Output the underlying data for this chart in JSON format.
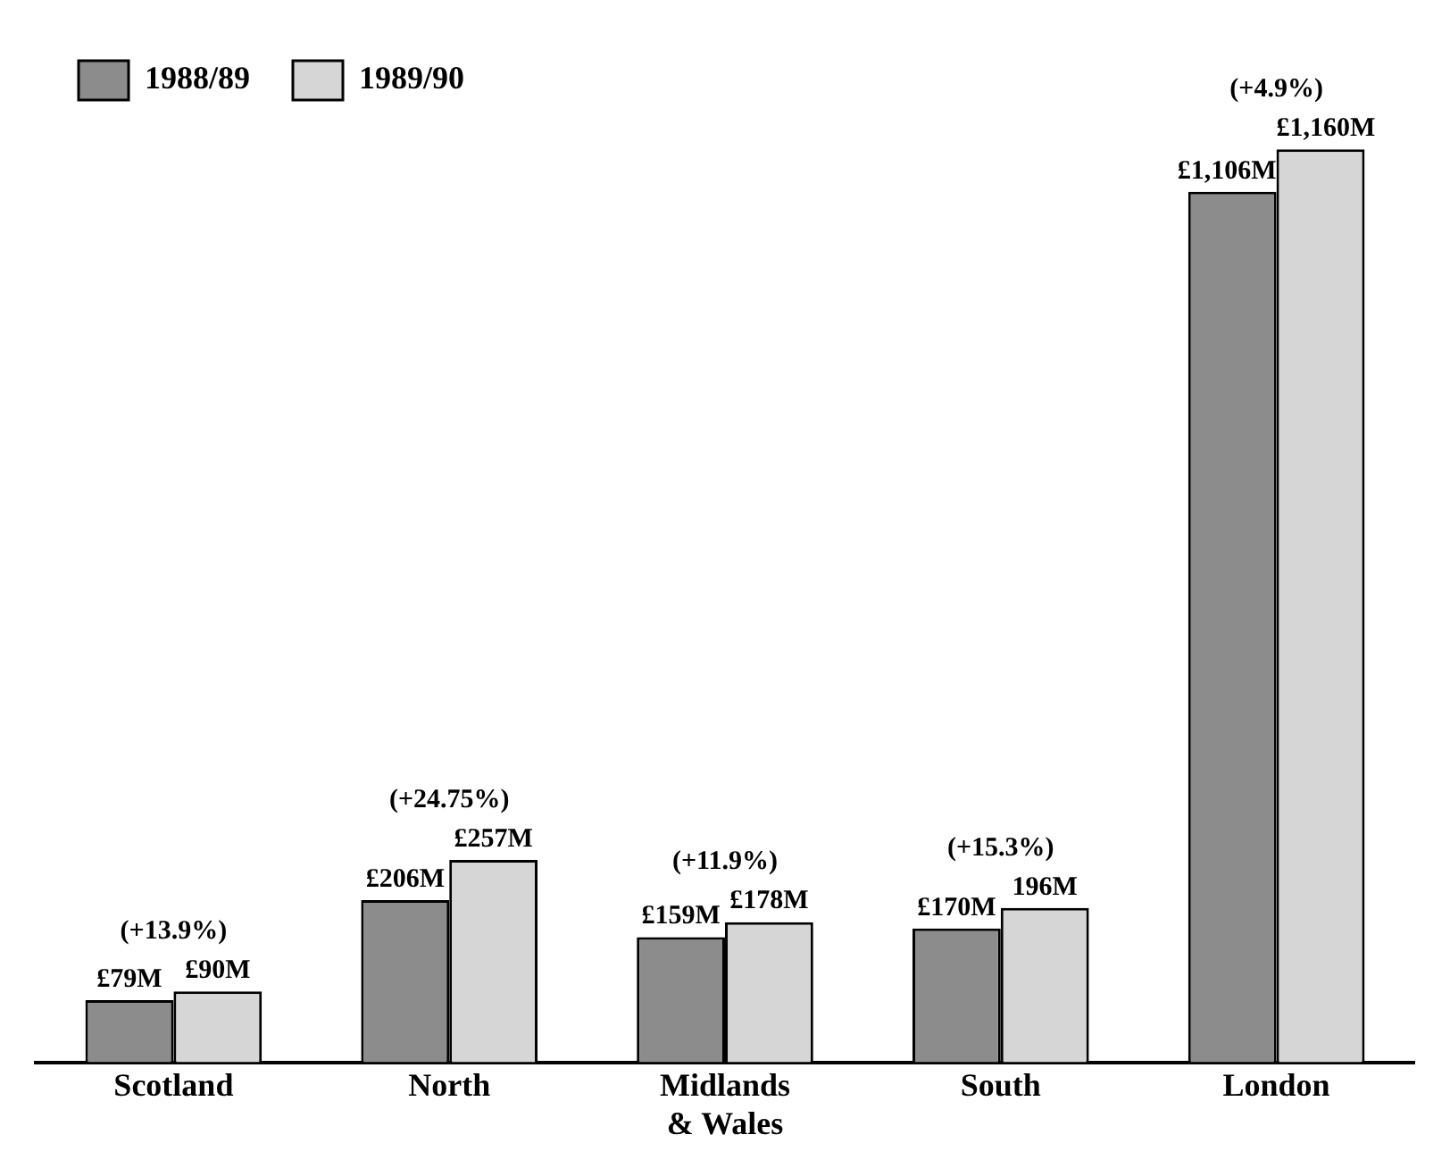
{
  "chart_data": {
    "type": "bar",
    "categories": [
      "Scotland",
      "North",
      "Midlands\n& Wales",
      "South",
      "London"
    ],
    "series": [
      {
        "name": "1988/89",
        "color": "#8c8c8c",
        "values": [
          79,
          206,
          159,
          170,
          1106
        ],
        "value_labels": [
          "£79M",
          "£206M",
          "£159M",
          "£170M",
          "£1,106M"
        ]
      },
      {
        "name": "1989/90",
        "color": "#d6d6d6",
        "values": [
          90,
          257,
          178,
          196,
          1160
        ],
        "value_labels": [
          "£90M",
          "£257M",
          "£178M",
          "196M",
          "£1,160M"
        ]
      }
    ],
    "annotations": [
      {
        "text": "(+13.9%)",
        "x": "Scotland",
        "y": 90
      },
      {
        "text": "(+24.75%)",
        "x": "North",
        "y": 257
      },
      {
        "text": "(+11.9%)",
        "x": "Midlands\n& Wales",
        "y": 178
      },
      {
        "text": "(+15.3%)",
        "x": "South",
        "y": 196
      },
      {
        "text": "(+4.9%)",
        "x": "London",
        "y": 1160
      }
    ],
    "legend": "top left",
    "grid": false
  }
}
